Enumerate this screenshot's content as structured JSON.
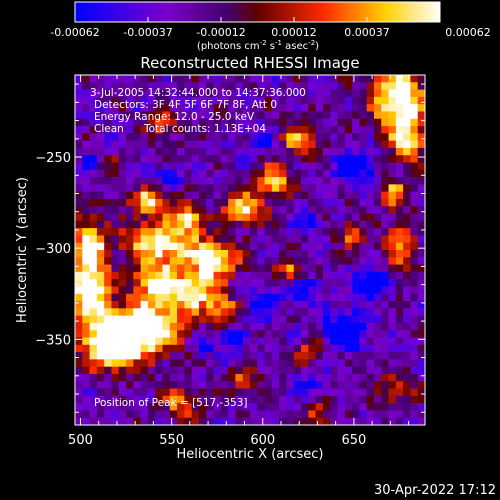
{
  "chart_data": {
    "type": "heatmap",
    "title": "Reconstructed RHESSI Image",
    "xlabel": "Heliocentric X (arcsec)",
    "ylabel": "Heliocentric Y (arcsec)",
    "xlim": [
      497,
      689
    ],
    "ylim": [
      -397,
      -205
    ],
    "x_ticks": [
      500,
      550,
      600,
      650
    ],
    "y_ticks": [
      -250,
      -300,
      -350
    ],
    "colorbar": {
      "ticks": [
        "-0.00062",
        "-0.00037",
        "-0.00012",
        "0.00012",
        "0.00037",
        "0.00062"
      ],
      "range": [
        -0.00062,
        0.00062
      ],
      "unit_text": "(photons cm",
      "unit_sup1": "-2",
      "unit_mid": " s",
      "unit_sup2": "-1",
      "unit_end": " asec",
      "unit_sup3": "-2",
      "unit_close": ")"
    },
    "annotations": {
      "time_range": "3-Jul-2005 14:32:44.000 to 14:37:36.000",
      "detectors": "Detectors: 3F 4F 5F 6F 7F 8F, Att 0",
      "energy_range": "Energy Range: 12.0 - 25.0 keV",
      "clean_label": "Clean",
      "total_counts": "Total counts: 1.13E+04",
      "peak_position": "Position of Peak = [517,-353]"
    },
    "peak": [
      517,
      -353
    ],
    "grid": false,
    "legend": "none",
    "colormap": [
      [
        0.0,
        "#0000ff"
      ],
      [
        0.25,
        "#7a00cc"
      ],
      [
        0.42,
        "#44006a"
      ],
      [
        0.5,
        "#600000"
      ],
      [
        0.68,
        "#ff2a00"
      ],
      [
        0.85,
        "#ffd000"
      ],
      [
        1.0,
        "#ffffff"
      ]
    ],
    "blobs": [
      {
        "x": 517,
        "y": -352,
        "sx": 11,
        "sy": 9,
        "a": 1.05
      },
      {
        "x": 537,
        "y": -343,
        "sx": 15,
        "sy": 10,
        "a": 0.82
      },
      {
        "x": 505,
        "y": -325,
        "sx": 8,
        "sy": 10,
        "a": 0.72
      },
      {
        "x": 540,
        "y": -318,
        "sx": 8,
        "sy": 7,
        "a": 0.65
      },
      {
        "x": 561,
        "y": -323,
        "sx": 9,
        "sy": 8,
        "a": 0.7
      },
      {
        "x": 578,
        "y": -333,
        "sx": 6,
        "sy": 6,
        "a": 0.5
      },
      {
        "x": 574,
        "y": -306,
        "sx": 9,
        "sy": 7,
        "a": 0.72
      },
      {
        "x": 544,
        "y": -297,
        "sx": 14,
        "sy": 8,
        "a": 0.75
      },
      {
        "x": 505,
        "y": -300,
        "sx": 7,
        "sy": 12,
        "a": 0.68
      },
      {
        "x": 538,
        "y": -274,
        "sx": 8,
        "sy": 6,
        "a": 0.55
      },
      {
        "x": 514,
        "y": -256,
        "sx": 5,
        "sy": 5,
        "a": 0.5
      },
      {
        "x": 560,
        "y": -284,
        "sx": 6,
        "sy": 5,
        "a": 0.6
      },
      {
        "x": 590,
        "y": -278,
        "sx": 8,
        "sy": 6,
        "a": 0.62
      },
      {
        "x": 606,
        "y": -263,
        "sx": 7,
        "sy": 6,
        "a": 0.62
      },
      {
        "x": 620,
        "y": -240,
        "sx": 8,
        "sy": 6,
        "a": 0.5
      },
      {
        "x": 674,
        "y": -218,
        "sx": 10,
        "sy": 12,
        "a": 0.85
      },
      {
        "x": 680,
        "y": -240,
        "sx": 7,
        "sy": 9,
        "a": 0.55
      },
      {
        "x": 615,
        "y": -312,
        "sx": 6,
        "sy": 5,
        "a": 0.45
      },
      {
        "x": 648,
        "y": -292,
        "sx": 5,
        "sy": 5,
        "a": 0.45
      },
      {
        "x": 675,
        "y": -300,
        "sx": 6,
        "sy": 10,
        "a": 0.5
      },
      {
        "x": 626,
        "y": -357,
        "sx": 6,
        "sy": 5,
        "a": 0.42
      },
      {
        "x": 673,
        "y": -376,
        "sx": 7,
        "sy": 6,
        "a": 0.4
      },
      {
        "x": 590,
        "y": -373,
        "sx": 6,
        "sy": 5,
        "a": 0.38
      },
      {
        "x": 555,
        "y": -385,
        "sx": 7,
        "sy": 6,
        "a": 0.42
      },
      {
        "x": 630,
        "y": -390,
        "sx": 6,
        "sy": 5,
        "a": 0.35
      },
      {
        "x": 545,
        "y": -233,
        "sx": 6,
        "sy": 6,
        "a": 0.35
      },
      {
        "x": 672,
        "y": -270,
        "sx": 6,
        "sy": 6,
        "a": 0.45
      },
      {
        "x": 600,
        "y": -241,
        "sx": 6,
        "sy": 5,
        "a": -0.35
      },
      {
        "x": 650,
        "y": -255,
        "sx": 8,
        "sy": 6,
        "a": -0.5
      },
      {
        "x": 660,
        "y": -318,
        "sx": 6,
        "sy": 5,
        "a": -0.6
      },
      {
        "x": 646,
        "y": -345,
        "sx": 9,
        "sy": 7,
        "a": -0.55
      },
      {
        "x": 622,
        "y": -322,
        "sx": 6,
        "sy": 5,
        "a": -0.4
      },
      {
        "x": 600,
        "y": -330,
        "sx": 7,
        "sy": 6,
        "a": -0.35
      },
      {
        "x": 510,
        "y": -255,
        "sx": 6,
        "sy": 6,
        "a": -0.4
      },
      {
        "x": 582,
        "y": -350,
        "sx": 6,
        "sy": 5,
        "a": -0.35
      },
      {
        "x": 567,
        "y": -352,
        "sx": 5,
        "sy": 5,
        "a": -0.3
      },
      {
        "x": 624,
        "y": -285,
        "sx": 5,
        "sy": 4,
        "a": -0.35
      },
      {
        "x": 625,
        "y": -375,
        "sx": 6,
        "sy": 5,
        "a": -0.3
      },
      {
        "x": 548,
        "y": -262,
        "sx": 5,
        "sy": 4,
        "a": -0.32
      }
    ]
  },
  "footer": {
    "timestamp": "30-Apr-2022 17:12"
  }
}
